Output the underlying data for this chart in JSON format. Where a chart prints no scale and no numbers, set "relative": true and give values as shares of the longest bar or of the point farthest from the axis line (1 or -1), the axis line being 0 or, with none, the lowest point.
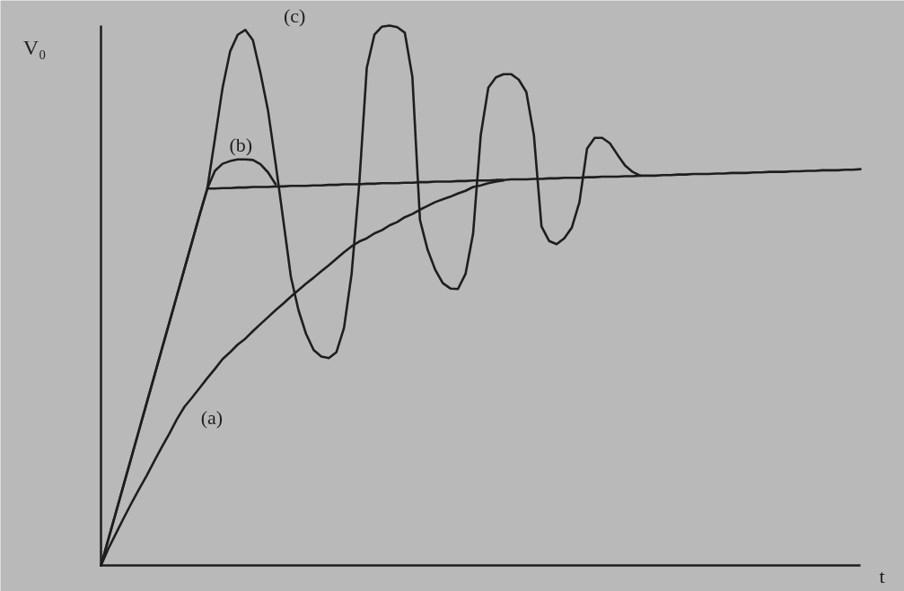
{
  "chart_data": {
    "type": "line",
    "xlabel": "t",
    "ylabel": "V₀",
    "relative": true,
    "line_style": "solid",
    "categories": [
      null,
      null,
      null,
      null,
      null,
      null,
      null,
      null,
      null,
      null,
      null,
      null,
      null,
      null,
      null,
      null,
      null,
      null,
      null,
      null,
      null,
      null,
      null,
      null,
      null,
      null,
      null,
      null,
      null,
      null,
      null,
      null,
      null,
      null,
      null,
      null,
      null,
      null,
      null,
      null,
      null,
      null,
      null,
      null,
      null,
      null,
      null,
      null,
      null,
      null,
      null,
      null,
      null,
      null,
      null,
      null,
      null,
      null,
      null,
      null,
      null,
      null,
      null,
      null,
      null,
      null,
      null,
      null,
      null,
      null,
      null,
      null,
      null,
      null,
      null,
      null,
      null,
      null,
      null,
      null,
      null,
      null,
      null,
      null,
      null,
      null,
      null,
      null,
      null,
      null,
      null,
      null,
      null,
      null,
      null,
      null,
      null,
      null,
      null,
      null,
      null
    ],
    "series": [
      {
        "name": "(a)",
        "color": "#1e1e1e",
        "values": [
          0,
          0.032,
          0.06,
          0.088,
          0.115,
          0.141,
          0.166,
          0.193,
          0.219,
          0.244,
          0.271,
          0.294,
          0.311,
          0.329,
          0.347,
          0.364,
          0.382,
          0.395,
          0.409,
          0.42,
          0.434,
          0.447,
          0.46,
          0.473,
          0.485,
          0.498,
          0.51,
          0.522,
          0.533,
          0.545,
          0.556,
          0.568,
          0.58,
          0.591,
          0.6,
          0.606,
          0.615,
          0.621,
          0.63,
          0.636,
          0.645,
          0.651,
          0.659,
          0.666,
          0.673,
          0.678,
          0.683,
          0.689,
          0.694,
          0.701,
          0.704,
          0.708,
          0.711,
          0.713,
          null,
          null,
          null,
          null,
          null,
          null,
          null,
          null,
          null,
          null,
          null,
          null,
          null,
          null,
          null,
          null,
          null,
          null,
          null,
          null,
          null,
          null,
          null,
          null,
          null,
          null,
          null,
          null,
          null,
          null,
          null,
          null,
          null,
          null,
          null,
          null,
          null,
          null,
          null,
          null,
          null,
          null,
          null,
          null,
          null,
          null,
          null
        ]
      },
      {
        "name": "(b)",
        "color": "#1e1e1e",
        "values": [
          0,
          0.05,
          0.1,
          0.15,
          0.2,
          0.25,
          0.3,
          0.35,
          0.4,
          0.45,
          0.5,
          0.55,
          0.6,
          0.65,
          0.698,
          0.731,
          0.744,
          0.749,
          0.752,
          0.752,
          0.751,
          0.743,
          0.728,
          0.706,
          null,
          null,
          null,
          null,
          null,
          null,
          null,
          null,
          null,
          null,
          null,
          null,
          null,
          null,
          null,
          null,
          null,
          null,
          null,
          null,
          null,
          null,
          null,
          null,
          null,
          null,
          null,
          null,
          null,
          null,
          null,
          null,
          null,
          null,
          null,
          null,
          null,
          null,
          null,
          null,
          null,
          null,
          null,
          null,
          null,
          null,
          null,
          null,
          null,
          null,
          null,
          null,
          null,
          null,
          null,
          null,
          null,
          null,
          null,
          null,
          null,
          null,
          null,
          null,
          null,
          null,
          null,
          null,
          null,
          null,
          null,
          null,
          null,
          null,
          null,
          null,
          null
        ]
      },
      {
        "name": "(c)",
        "color": "#1e1e1e",
        "values": [
          0,
          0.05,
          0.1,
          0.15,
          0.2,
          0.25,
          0.3,
          0.35,
          0.4,
          0.45,
          0.5,
          0.55,
          0.6,
          0.65,
          0.698,
          0.79,
          0.884,
          0.952,
          0.983,
          0.992,
          0.973,
          0.912,
          0.842,
          0.744,
          0.64,
          0.535,
          0.473,
          0.429,
          0.399,
          0.387,
          0.384,
          0.395,
          0.44,
          0.54,
          0.706,
          0.922,
          0.983,
          0.998,
          1.0,
          0.997,
          0.987,
          0.905,
          0.64,
          0.585,
          0.548,
          0.523,
          0.513,
          0.512,
          0.54,
          0.615,
          0.797,
          0.885,
          0.904,
          0.91,
          0.91,
          0.9,
          0.877,
          0.797,
          0.628,
          0.601,
          0.595,
          0.606,
          0.626,
          0.673,
          0.772,
          0.792,
          0.792,
          0.782,
          0.761,
          0.741,
          0.729,
          0.722,
          null,
          null,
          null,
          null,
          null,
          null,
          null,
          null,
          null,
          null,
          null,
          null,
          null,
          null,
          null,
          null,
          null,
          null,
          null,
          null,
          null,
          null,
          null,
          null,
          null,
          null,
          null,
          null,
          null
        ]
      },
      {
        "color": "#1e1e1e",
        "values": [
          null,
          null,
          null,
          null,
          null,
          null,
          null,
          null,
          null,
          null,
          null,
          null,
          null,
          null,
          0.698,
          0.698,
          0.699,
          0.699,
          0.7,
          0.7,
          0.701,
          0.701,
          0.701,
          0.702,
          0.702,
          0.703,
          0.703,
          0.703,
          0.704,
          0.704,
          0.705,
          0.705,
          0.706,
          0.706,
          0.706,
          0.707,
          0.707,
          0.708,
          0.708,
          0.708,
          0.709,
          0.709,
          0.71,
          0.71,
          0.711,
          0.711,
          0.711,
          0.712,
          0.712,
          0.713,
          0.713,
          0.713,
          0.714,
          0.714,
          0.715,
          0.715,
          0.715,
          0.716,
          0.716,
          0.717,
          0.717,
          0.718,
          0.718,
          0.718,
          0.719,
          0.719,
          0.72,
          0.72,
          0.72,
          0.721,
          0.721,
          0.722,
          0.722,
          0.722,
          0.723,
          0.723,
          0.724,
          0.724,
          0.725,
          0.725,
          0.725,
          0.726,
          0.726,
          0.727,
          0.727,
          0.727,
          0.728,
          0.728,
          0.729,
          0.729,
          0.729,
          0.73,
          0.73,
          0.731,
          0.731,
          0.732,
          0.732,
          0.732,
          0.733,
          0.733,
          0.734
        ]
      }
    ]
  }
}
